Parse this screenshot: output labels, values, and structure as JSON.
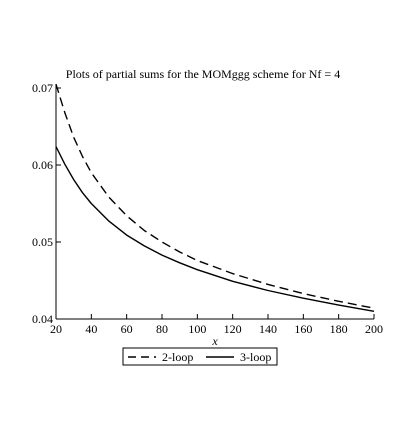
{
  "chart_data": {
    "type": "line",
    "title": "Plots of partial sums for the MOMggg scheme for Nf = 4",
    "xlabel": "x",
    "ylabel": "",
    "xlim": [
      20,
      200
    ],
    "ylim": [
      0.04,
      0.07
    ],
    "x_ticks": [
      "20",
      "40",
      "60",
      "80",
      "100",
      "120",
      "140",
      "160",
      "180",
      "200"
    ],
    "y_ticks": [
      "0.04",
      "0.05",
      "0.06",
      "0.07"
    ],
    "grid": false,
    "legend_position": "bottom",
    "series": [
      {
        "name": "2-loop",
        "style": "dashed",
        "color": "#000000",
        "x": [
          20,
          25,
          30,
          35,
          40,
          50,
          60,
          70,
          80,
          90,
          100,
          120,
          140,
          160,
          180,
          200
        ],
        "values": [
          0.0705,
          0.0668,
          0.0636,
          0.0611,
          0.059,
          0.0558,
          0.0534,
          0.0515,
          0.05,
          0.0487,
          0.0476,
          0.0459,
          0.0445,
          0.0433,
          0.0423,
          0.0414
        ]
      },
      {
        "name": "3-loop",
        "style": "solid",
        "color": "#000000",
        "x": [
          20,
          25,
          30,
          35,
          40,
          50,
          60,
          70,
          80,
          90,
          100,
          120,
          140,
          160,
          180,
          200
        ],
        "values": [
          0.0624,
          0.0601,
          0.0581,
          0.0564,
          0.055,
          0.0527,
          0.0509,
          0.0495,
          0.0483,
          0.0473,
          0.0464,
          0.0449,
          0.0437,
          0.0427,
          0.0418,
          0.041
        ]
      }
    ]
  }
}
